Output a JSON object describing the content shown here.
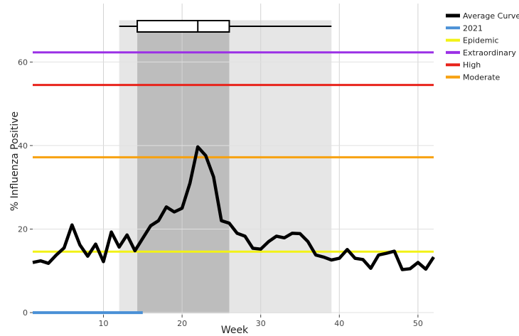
{
  "chart_data": {
    "type": "line",
    "title": "",
    "xlabel": "Week",
    "ylabel": "% Influenza Positive",
    "xlim": [
      1,
      52
    ],
    "ylim": [
      -0.5,
      74
    ],
    "xticks": [
      10,
      20,
      30,
      40,
      50
    ],
    "yticks": [
      0,
      20,
      40,
      60
    ],
    "grid": true,
    "legend_position": "right",
    "season": {
      "outer_range": [
        12,
        39
      ],
      "inner_range": [
        14.3,
        26
      ],
      "median_week": 22,
      "whisker_range": [
        12,
        39
      ]
    },
    "thresholds": [
      {
        "name": "Extraordinary",
        "value": 62.3,
        "color": "#9b30e6"
      },
      {
        "name": "High",
        "value": 54.5,
        "color": "#e8231b"
      },
      {
        "name": "Moderate",
        "value": 37.2,
        "color": "#f7a10f"
      },
      {
        "name": "Epidemic",
        "value": 14.6,
        "color": "#f2f216"
      }
    ],
    "series": [
      {
        "name": "Average Curve",
        "color": "#000000",
        "x": [
          1,
          2,
          3,
          4,
          5,
          6,
          7,
          8,
          9,
          10,
          11,
          12,
          13,
          14,
          15,
          16,
          17,
          18,
          19,
          20,
          21,
          22,
          23,
          24,
          25,
          26,
          27,
          28,
          29,
          30,
          31,
          32,
          33,
          34,
          35,
          36,
          37,
          38,
          39,
          40,
          41,
          42,
          43,
          44,
          45,
          46,
          47,
          48,
          49,
          50,
          51,
          52
        ],
        "y": [
          12.0,
          12.4,
          11.8,
          13.8,
          15.5,
          21.0,
          16.2,
          13.5,
          16.4,
          12.2,
          19.3,
          15.7,
          18.6,
          14.8,
          17.8,
          20.8,
          22.0,
          25.3,
          24.1,
          25.0,
          31.0,
          39.7,
          37.6,
          32.5,
          22.0,
          21.4,
          19.0,
          18.3,
          15.4,
          15.2,
          17.0,
          18.3,
          17.9,
          19.0,
          18.9,
          17.0,
          13.8,
          13.3,
          12.6,
          13.0,
          15.1,
          13.0,
          12.7,
          10.6,
          13.8,
          14.2,
          14.7,
          10.3,
          10.5,
          12.0,
          10.4,
          13.3
        ]
      },
      {
        "name": "2021",
        "color": "#4a90d6",
        "x": [
          1,
          2,
          3,
          4,
          5,
          6,
          7,
          8,
          9,
          10,
          11,
          12,
          13,
          14,
          15
        ],
        "y": [
          0,
          0,
          0,
          0,
          0,
          0,
          0,
          0,
          0,
          0,
          0,
          0,
          0,
          0,
          0
        ]
      }
    ],
    "legend": [
      {
        "label": "Average Curve",
        "color": "#000000"
      },
      {
        "label": "2021",
        "color": "#4a90d6"
      },
      {
        "label": "Epidemic",
        "color": "#f2f216"
      },
      {
        "label": "Extraordinary",
        "color": "#9b30e6"
      },
      {
        "label": "High",
        "color": "#e8231b"
      },
      {
        "label": "Moderate",
        "color": "#f7a10f"
      }
    ]
  }
}
